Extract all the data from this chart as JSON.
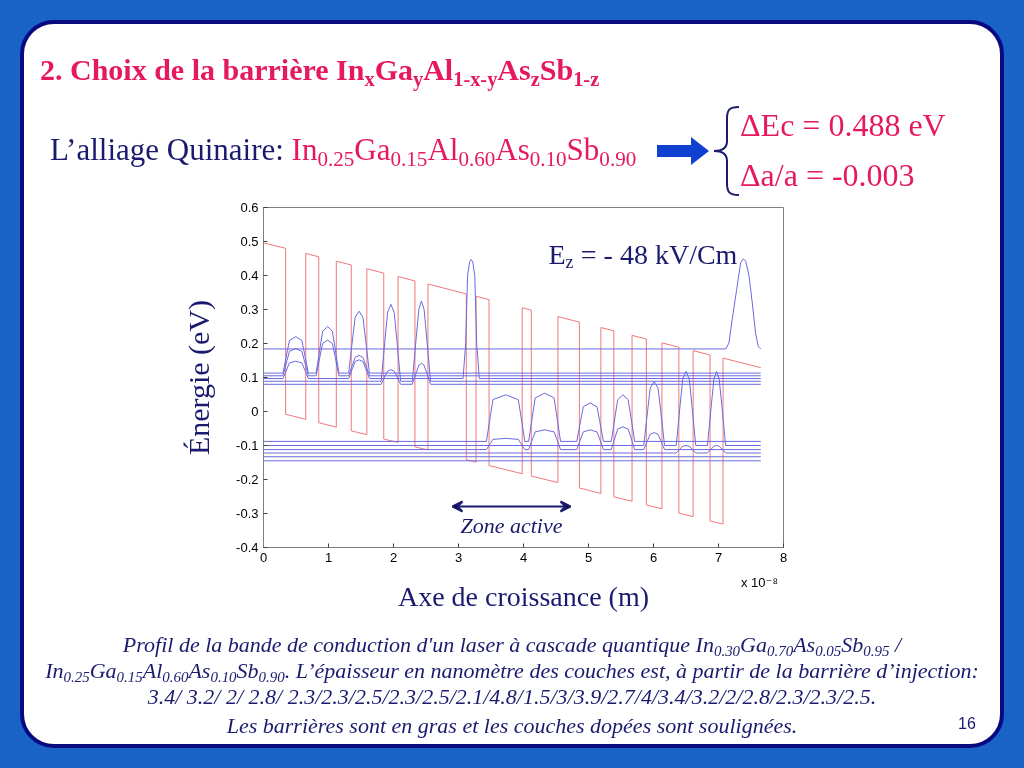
{
  "chart_data": {
    "type": "line",
    "title": "2. Choix de la barrière In$_{x}$Ga$_{y}$Al$_{1-x-y}$As$_{z}$Sb$_{1-z}$",
    "xlabel": "Axe de croissance (m)",
    "ylabel": "Énergie (eV)",
    "xlim": [
      0,
      8
    ],
    "ylim": [
      -0.4,
      0.6
    ],
    "xticks": [
      0,
      1,
      2,
      3,
      4,
      5,
      6,
      7,
      8
    ],
    "yticks": [
      -0.4,
      -0.3,
      -0.2,
      -0.1,
      0,
      0.1,
      0.2,
      0.3,
      0.4,
      0.5,
      0.6
    ],
    "line_style": "solid",
    "series": [
      {
        "color": "#f07878",
        "x": [
          0,
          0.34,
          0.34,
          0.65,
          0.65,
          0.85,
          0.85,
          1.12,
          1.12,
          1.35,
          1.35,
          1.59,
          1.59,
          1.85,
          1.85,
          2.07,
          2.07,
          2.33,
          2.33,
          2.53,
          2.53,
          3.12,
          3.12,
          3.27,
          3.27,
          3.47,
          3.47,
          3.98,
          3.98,
          4.12,
          4.12,
          4.53,
          4.53,
          4.86,
          4.86,
          5.19,
          5.19,
          5.39,
          5.39,
          5.67,
          5.67,
          5.89,
          5.89,
          6.13,
          6.13,
          6.39,
          6.39,
          6.61,
          6.61,
          6.87,
          6.87,
          7.07,
          7.07,
          7.65
        ],
        "values": [
          0.496,
          0.48,
          -0.008,
          -0.023,
          0.465,
          0.455,
          -0.033,
          -0.046,
          0.442,
          0.431,
          -0.057,
          -0.068,
          0.42,
          0.407,
          -0.081,
          -0.091,
          0.397,
          0.384,
          -0.104,
          -0.113,
          0.375,
          0.346,
          -0.142,
          -0.149,
          0.339,
          0.329,
          -0.159,
          -0.183,
          0.305,
          0.298,
          -0.19,
          -0.209,
          0.279,
          0.263,
          -0.225,
          -0.241,
          0.247,
          0.237,
          -0.251,
          -0.264,
          0.224,
          0.213,
          -0.275,
          -0.286,
          0.202,
          0.189,
          -0.299,
          -0.309,
          0.179,
          0.166,
          -0.322,
          -0.331,
          0.157,
          0.129
        ]
      },
      {
        "color": "#6a6ae0",
        "x": [
          0,
          0.3,
          0.36,
          0.4,
          0.495,
          0.59,
          0.63,
          0.69,
          0.81,
          0.87,
          0.91,
          0.985,
          1.06,
          1.1,
          1.16,
          1.31,
          1.37,
          1.41,
          1.47,
          1.53,
          1.57,
          1.63,
          7.65
        ],
        "values": [
          0.113,
          0.113,
          0.172,
          0.209,
          0.22,
          0.209,
          0.172,
          0.113,
          0.113,
          0.188,
          0.236,
          0.25,
          0.236,
          0.188,
          0.113,
          0.113,
          0.213,
          0.277,
          0.295,
          0.277,
          0.213,
          0.113,
          0.113
        ]
      },
      {
        "color": "#6a6ae0",
        "x": [
          0,
          0.3,
          0.36,
          0.4,
          0.495,
          0.59,
          0.63,
          0.69,
          0.81,
          0.87,
          0.91,
          0.985,
          1.06,
          1.1,
          1.16,
          1.31,
          1.37,
          1.41,
          1.47,
          1.53,
          1.57,
          1.63,
          7.65
        ],
        "values": [
          0.105,
          0.105,
          0.149,
          0.177,
          0.185,
          0.177,
          0.149,
          0.105,
          0.105,
          0.163,
          0.2,
          0.21,
          0.2,
          0.163,
          0.105,
          0.105,
          0.138,
          0.159,
          0.165,
          0.159,
          0.138,
          0.105,
          0.105
        ]
      },
      {
        "color": "#6a6ae0",
        "x": [
          0,
          0.3,
          0.36,
          0.4,
          0.495,
          0.59,
          0.63,
          0.69,
          1.31,
          1.37,
          1.41,
          1.47,
          1.53,
          1.57,
          1.63,
          3.07,
          3.11,
          3.14,
          3.17,
          3.195,
          3.22,
          3.25,
          3.28,
          3.32,
          7.65
        ],
        "values": [
          0.097,
          0.097,
          0.125,
          0.143,
          0.148,
          0.143,
          0.125,
          0.097,
          0.097,
          0.127,
          0.147,
          0.152,
          0.147,
          0.127,
          0.097,
          0.097,
          0.2,
          0.4,
          0.44,
          0.447,
          0.44,
          0.4,
          0.2,
          0.097,
          0.097
        ]
      },
      {
        "color": "#6a6ae0",
        "x": [
          0,
          1.81,
          1.87,
          1.91,
          1.96,
          2.01,
          2.05,
          2.11,
          2.29,
          2.35,
          2.39,
          2.43,
          2.47,
          2.51,
          2.57,
          7.65
        ],
        "values": [
          0.089,
          0.089,
          0.213,
          0.292,
          0.315,
          0.292,
          0.213,
          0.089,
          0.089,
          0.219,
          0.301,
          0.325,
          0.301,
          0.219,
          0.089,
          0.089
        ]
      },
      {
        "color": "#6a6ae0",
        "x": [
          0,
          1.81,
          1.87,
          1.91,
          1.96,
          2.01,
          2.05,
          2.11,
          2.29,
          2.35,
          2.39,
          2.43,
          2.47,
          2.51,
          2.57,
          7.65
        ],
        "values": [
          0.08,
          0.08,
          0.104,
          0.119,
          0.123,
          0.119,
          0.104,
          0.08,
          0.08,
          0.114,
          0.136,
          0.142,
          0.136,
          0.114,
          0.08,
          0.08
        ]
      },
      {
        "color": "#6a6ae0",
        "x": [
          0,
          7.11,
          7.16,
          7.21,
          7.28,
          7.34,
          7.38,
          7.42,
          7.47,
          7.52,
          7.57,
          7.61,
          7.65
        ],
        "values": [
          0.184,
          0.184,
          0.201,
          0.27,
          0.359,
          0.437,
          0.449,
          0.442,
          0.398,
          0.319,
          0.231,
          0.192,
          0.184
        ]
      },
      {
        "color": "#6a6ae0",
        "x": [
          0,
          3.43,
          3.49,
          3.53,
          3.725,
          3.92,
          3.96,
          4.02,
          4.08,
          4.14,
          4.18,
          4.325,
          4.47,
          4.51,
          4.57,
          4.82,
          4.88,
          4.92,
          5.025,
          5.13,
          5.17,
          5.23,
          5.35,
          5.41,
          5.45,
          5.53,
          5.61,
          5.65,
          5.71,
          7.65
        ],
        "values": [
          -0.088,
          -0.088,
          -0.013,
          0.035,
          0.049,
          0.035,
          -0.013,
          -0.088,
          -0.088,
          -0.01,
          0.04,
          0.054,
          0.04,
          -0.01,
          -0.088,
          -0.088,
          -0.026,
          0.014,
          0.025,
          0.014,
          -0.026,
          -0.088,
          -0.088,
          -0.013,
          0.035,
          0.049,
          0.035,
          -0.013,
          -0.088,
          -0.088
        ]
      },
      {
        "color": "#6a6ae0",
        "x": [
          0,
          5.85,
          5.91,
          5.95,
          6.01,
          6.07,
          6.11,
          6.17,
          6.35,
          6.41,
          6.45,
          6.5,
          6.55,
          6.59,
          6.65,
          6.83,
          6.89,
          6.93,
          6.97,
          7.01,
          7.05,
          7.11,
          7.65
        ],
        "values": [
          -0.1,
          -0.1,
          0.003,
          0.069,
          0.088,
          0.069,
          0.003,
          -0.1,
          -0.1,
          0.02,
          0.096,
          0.118,
          0.096,
          0.02,
          -0.1,
          -0.1,
          0.02,
          0.096,
          0.118,
          0.096,
          0.02,
          -0.1,
          -0.1
        ]
      },
      {
        "color": "#6a6ae0",
        "x": [
          0,
          3.43,
          3.49,
          3.53,
          3.725,
          3.92,
          3.96,
          4.02,
          4.08,
          4.14,
          4.18,
          4.325,
          4.47,
          4.51,
          4.57,
          4.82,
          4.88,
          4.92,
          5.025,
          5.13,
          5.17,
          5.23,
          5.35,
          5.41,
          5.45,
          5.53,
          5.61,
          5.65,
          5.71,
          5.85,
          5.91,
          5.95,
          6.01,
          6.07,
          6.11,
          6.17,
          7.65
        ],
        "values": [
          -0.112,
          -0.112,
          -0.094,
          -0.082,
          -0.079,
          -0.082,
          -0.094,
          -0.112,
          -0.112,
          -0.08,
          -0.06,
          -0.054,
          -0.06,
          -0.08,
          -0.112,
          -0.112,
          -0.08,
          -0.06,
          -0.054,
          -0.06,
          -0.08,
          -0.112,
          -0.112,
          -0.075,
          -0.052,
          -0.045,
          -0.052,
          -0.075,
          -0.112,
          -0.112,
          -0.085,
          -0.067,
          -0.062,
          -0.067,
          -0.085,
          -0.112,
          -0.112
        ]
      },
      {
        "color": "#6a6ae0",
        "x": [
          0,
          6.35,
          6.41,
          6.45,
          6.5,
          6.55,
          6.59,
          6.65,
          6.83,
          6.89,
          6.93,
          6.97,
          7.01,
          7.05,
          7.11,
          7.65
        ],
        "values": [
          -0.122,
          -0.122,
          -0.11,
          -0.102,
          -0.1,
          -0.102,
          -0.11,
          -0.122,
          -0.122,
          -0.11,
          -0.102,
          -0.1,
          -0.102,
          -0.11,
          -0.122,
          -0.122
        ]
      },
      {
        "color": "#6a6ae0",
        "x": [
          0,
          7.65
        ],
        "values": [
          -0.133,
          -0.133
        ]
      },
      {
        "color": "#6a6ae0",
        "x": [
          0,
          7.65
        ],
        "values": [
          -0.145,
          -0.145
        ]
      }
    ],
    "annotations": [
      "L’alliage Quinaire:",
      "In$_{0.25}$Ga$_{0.15}$Al$_{0.60}$As$_{0.10}$Sb$_{0.90}$",
      "ΔEc = 0.488 eV",
      "Δa/a = -0.003",
      "E$_{z}$ = - 48 kV/Cm",
      "Zone active",
      "x 10⁻⁸",
      "Profil de la bande de conduction d'un laser à cascade quantique In$_{0.30}$Ga$_{0.70}$As$_{0.05}$Sb$_{0.95}$ /",
      "In$_{0.25}$Ga$_{0.15}$Al$_{0.60}$As$_{0.10}$Sb$_{0.90}$. L’épaisseur en nanomètre des couches est, à partir de la barrière d’injection:",
      "3.4/ 3.2/ 2/ 2.8/ 2.3/2.3/2.5/2.3/2.5/2.1/4.8/1.5/3/3.9/2.7/4/3.4/3.2/2/2.8/2.3/2.3/2.5.",
      "Les barrières sont en gras et les couches dopées sont soulignées.",
      "16"
    ]
  }
}
